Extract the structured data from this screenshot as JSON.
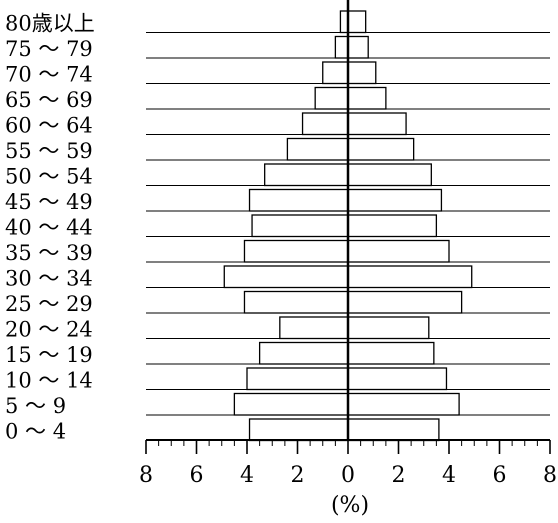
{
  "chart_data": {
    "type": "bar",
    "orientation": "horizontal-diverging",
    "categories": [
      "80歳以上",
      "75 ～ 79",
      "70 ～ 74",
      "65 ～ 69",
      "60 ～ 64",
      "55 ～ 59",
      "50 ～ 54",
      "45 ～ 49",
      "40 ～ 44",
      "35 ～ 39",
      "30 ～ 34",
      "25 ～ 29",
      "20 ～ 24",
      "15 ～ 19",
      "10 ～ 14",
      "5 ～ 9",
      "0 ～ 4"
    ],
    "series": [
      {
        "values": [
          0.3,
          0.5,
          1.0,
          1.3,
          1.8,
          2.4,
          3.3,
          3.9,
          3.8,
          4.1,
          4.9,
          4.1,
          2.7,
          3.5,
          4.0,
          4.5,
          3.9
        ]
      },
      {
        "values": [
          0.7,
          0.8,
          1.1,
          1.5,
          2.3,
          2.6,
          3.3,
          3.7,
          3.5,
          4.0,
          4.9,
          4.5,
          3.2,
          3.4,
          3.9,
          4.4,
          3.6
        ]
      }
    ],
    "x_tick_labels": [
      "8",
      "6",
      "4",
      "2",
      "0",
      "2",
      "4",
      "6",
      "8"
    ],
    "xlabel": "(%)",
    "xlim": [
      -8,
      8
    ],
    "grid": true
  }
}
